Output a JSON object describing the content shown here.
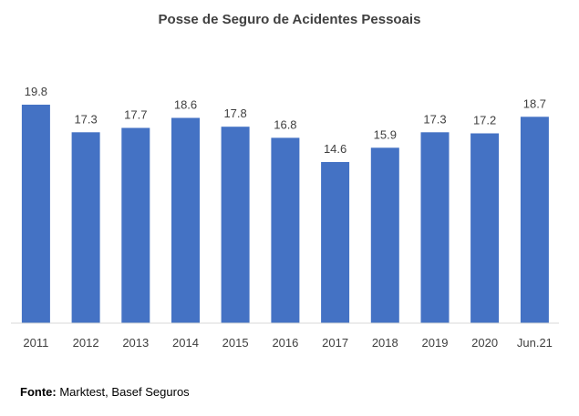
{
  "chart_data": {
    "type": "bar",
    "title": "Posse de Seguro de Acidentes Pessoais",
    "categories": [
      "2011",
      "2012",
      "2013",
      "2014",
      "2015",
      "2016",
      "2017",
      "2018",
      "2019",
      "2020",
      "Jun.21"
    ],
    "values": [
      19.8,
      17.3,
      17.7,
      18.6,
      17.8,
      16.8,
      14.6,
      15.9,
      17.3,
      17.2,
      18.7
    ],
    "data_labels": [
      "19.8",
      "17.3",
      "17.7",
      "18.6",
      "17.8",
      "16.8",
      "14.6",
      "15.9",
      "17.3",
      "17.2",
      "18.7"
    ],
    "xlabel": "",
    "ylabel": "",
    "ylim": [
      0,
      20
    ],
    "grid": false,
    "legend": "none",
    "bar_color": "#4472C4"
  },
  "source": {
    "label": "Fonte:",
    "text": " Marktest, Basef Seguros"
  }
}
